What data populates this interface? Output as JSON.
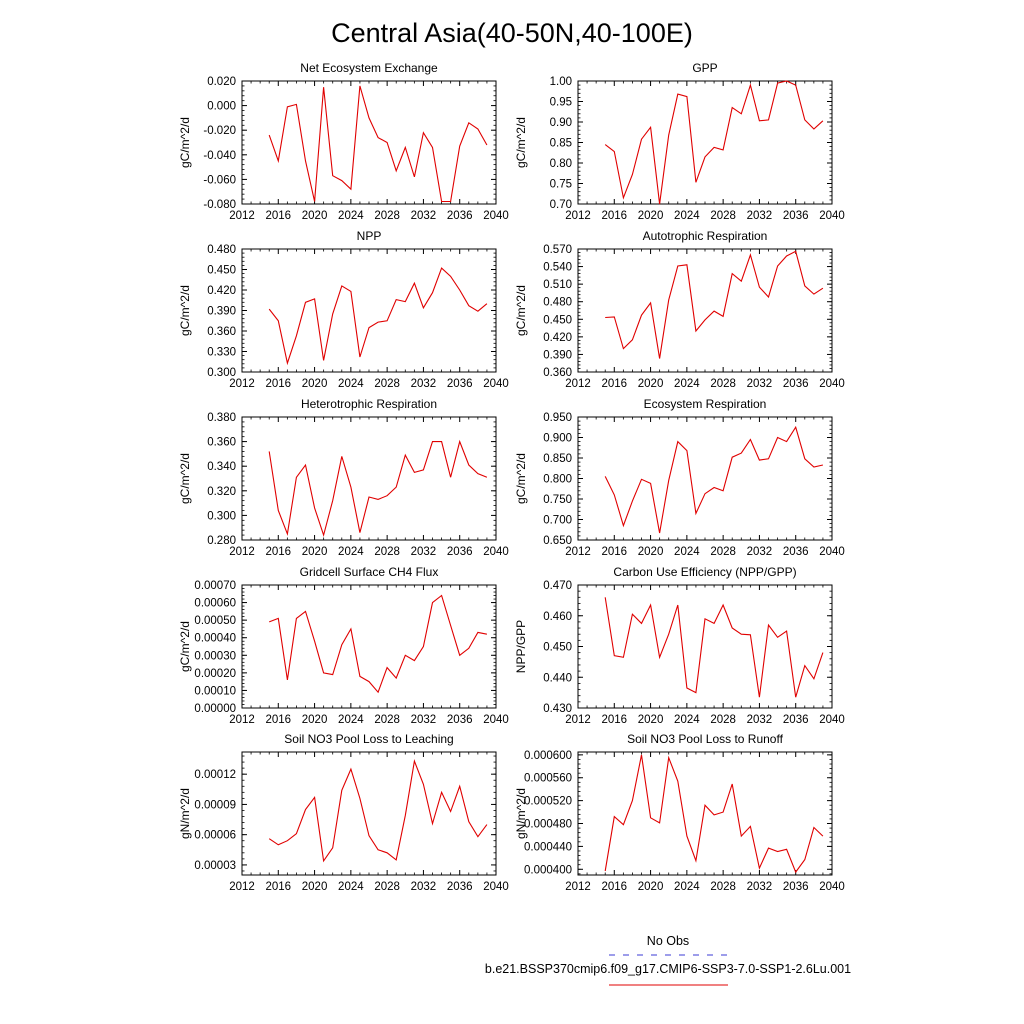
{
  "figure": {
    "title": "Central Asia(40-50N,40-100E)",
    "legend": {
      "items": [
        {
          "label": "No Obs",
          "color": "#3b3bd6",
          "dash": true
        },
        {
          "label": "b.e21.BSSP370cmip6.f09_g17.CMIP6-SSP3-7.0-SSP1-2.6Lu.001",
          "color": "#e00000",
          "dash": false
        }
      ]
    }
  },
  "chart_data": [
    {
      "type": "line",
      "title": "Net Ecosystem Exchange",
      "ylabel": "gC/m^2/d",
      "xlim": [
        2012,
        2040
      ],
      "xticks": [
        "2012",
        "2016",
        "2020",
        "2024",
        "2028",
        "2032",
        "2036",
        "2040"
      ],
      "ylim": [
        -0.08,
        0.02
      ],
      "yticks": [
        "-0.080",
        "-0.060",
        "-0.040",
        "-0.020",
        "0.000",
        "0.020"
      ],
      "line_color": "#e00000",
      "x": [
        2015,
        2016,
        2017,
        2018,
        2019,
        2020,
        2021,
        2022,
        2023,
        2024,
        2025,
        2026,
        2027,
        2028,
        2029,
        2030,
        2031,
        2032,
        2033,
        2034,
        2035,
        2036,
        2037,
        2038,
        2039
      ],
      "values": [
        -0.024,
        -0.045,
        -0.001,
        0.001,
        -0.045,
        -0.078,
        0.015,
        -0.057,
        -0.061,
        -0.068,
        0.016,
        -0.01,
        -0.026,
        -0.03,
        -0.053,
        -0.034,
        -0.058,
        -0.022,
        -0.034,
        -0.078,
        -0.078,
        -0.033,
        -0.014,
        -0.019,
        -0.032
      ]
    },
    {
      "type": "line",
      "title": "GPP",
      "ylabel": "gC/m^2/d",
      "xlim": [
        2012,
        2040
      ],
      "xticks": [
        "2012",
        "2016",
        "2020",
        "2024",
        "2028",
        "2032",
        "2036",
        "2040"
      ],
      "ylim": [
        0.7,
        1.0
      ],
      "yticks": [
        "0.70",
        "0.75",
        "0.80",
        "0.85",
        "0.90",
        "0.95",
        "1.00"
      ],
      "line_color": "#e00000",
      "x": [
        2015,
        2016,
        2017,
        2018,
        2019,
        2020,
        2021,
        2022,
        2023,
        2024,
        2025,
        2026,
        2027,
        2028,
        2029,
        2030,
        2031,
        2032,
        2033,
        2034,
        2035,
        2036,
        2037,
        2038,
        2039
      ],
      "values": [
        0.845,
        0.828,
        0.715,
        0.772,
        0.858,
        0.887,
        0.7,
        0.868,
        0.968,
        0.962,
        0.753,
        0.815,
        0.838,
        0.832,
        0.935,
        0.92,
        0.99,
        0.903,
        0.905,
        0.995,
        1.0,
        0.99,
        0.905,
        0.883,
        0.903
      ]
    },
    {
      "type": "line",
      "title": "NPP",
      "ylabel": "gC/m^2/d",
      "xlim": [
        2012,
        2040
      ],
      "xticks": [
        "2012",
        "2016",
        "2020",
        "2024",
        "2028",
        "2032",
        "2036",
        "2040"
      ],
      "ylim": [
        0.3,
        0.48
      ],
      "yticks": [
        "0.300",
        "0.330",
        "0.360",
        "0.390",
        "0.420",
        "0.450",
        "0.480"
      ],
      "line_color": "#e00000",
      "x": [
        2015,
        2016,
        2017,
        2018,
        2019,
        2020,
        2021,
        2022,
        2023,
        2024,
        2025,
        2026,
        2027,
        2028,
        2029,
        2030,
        2031,
        2032,
        2033,
        2034,
        2035,
        2036,
        2037,
        2038,
        2039
      ],
      "values": [
        0.392,
        0.375,
        0.313,
        0.353,
        0.402,
        0.407,
        0.317,
        0.385,
        0.426,
        0.418,
        0.322,
        0.365,
        0.373,
        0.375,
        0.406,
        0.403,
        0.43,
        0.394,
        0.416,
        0.452,
        0.44,
        0.42,
        0.397,
        0.389,
        0.4
      ]
    },
    {
      "type": "line",
      "title": "Autotrophic Respiration",
      "ylabel": "gC/m^2/d",
      "xlim": [
        2012,
        2040
      ],
      "xticks": [
        "2012",
        "2016",
        "2020",
        "2024",
        "2028",
        "2032",
        "2036",
        "2040"
      ],
      "ylim": [
        0.36,
        0.57
      ],
      "yticks": [
        "0.360",
        "0.390",
        "0.420",
        "0.450",
        "0.480",
        "0.510",
        "0.540",
        "0.570"
      ],
      "line_color": "#e00000",
      "x": [
        2015,
        2016,
        2017,
        2018,
        2019,
        2020,
        2021,
        2022,
        2023,
        2024,
        2025,
        2026,
        2027,
        2028,
        2029,
        2030,
        2031,
        2032,
        2033,
        2034,
        2035,
        2036,
        2037,
        2038,
        2039
      ],
      "values": [
        0.453,
        0.454,
        0.4,
        0.415,
        0.457,
        0.478,
        0.383,
        0.483,
        0.541,
        0.543,
        0.43,
        0.449,
        0.464,
        0.455,
        0.528,
        0.515,
        0.56,
        0.505,
        0.488,
        0.541,
        0.558,
        0.566,
        0.507,
        0.493,
        0.503
      ]
    },
    {
      "type": "line",
      "title": "Heterotrophic Respiration",
      "ylabel": "gC/m^2/d",
      "xlim": [
        2012,
        2040
      ],
      "xticks": [
        "2012",
        "2016",
        "2020",
        "2024",
        "2028",
        "2032",
        "2036",
        "2040"
      ],
      "ylim": [
        0.28,
        0.38
      ],
      "yticks": [
        "0.280",
        "0.300",
        "0.320",
        "0.340",
        "0.360",
        "0.380"
      ],
      "line_color": "#e00000",
      "x": [
        2015,
        2016,
        2017,
        2018,
        2019,
        2020,
        2021,
        2022,
        2023,
        2024,
        2025,
        2026,
        2027,
        2028,
        2029,
        2030,
        2031,
        2032,
        2033,
        2034,
        2035,
        2036,
        2037,
        2038,
        2039
      ],
      "values": [
        0.352,
        0.304,
        0.285,
        0.331,
        0.341,
        0.306,
        0.284,
        0.312,
        0.348,
        0.323,
        0.286,
        0.315,
        0.313,
        0.316,
        0.323,
        0.349,
        0.335,
        0.337,
        0.36,
        0.36,
        0.331,
        0.36,
        0.341,
        0.334,
        0.331
      ]
    },
    {
      "type": "line",
      "title": "Ecosystem Respiration",
      "ylabel": "gC/m^2/d",
      "xlim": [
        2012,
        2040
      ],
      "xticks": [
        "2012",
        "2016",
        "2020",
        "2024",
        "2028",
        "2032",
        "2036",
        "2040"
      ],
      "ylim": [
        0.65,
        0.95
      ],
      "yticks": [
        "0.650",
        "0.700",
        "0.750",
        "0.800",
        "0.850",
        "0.900",
        "0.950"
      ],
      "line_color": "#e00000",
      "x": [
        2015,
        2016,
        2017,
        2018,
        2019,
        2020,
        2021,
        2022,
        2023,
        2024,
        2025,
        2026,
        2027,
        2028,
        2029,
        2030,
        2031,
        2032,
        2033,
        2034,
        2035,
        2036,
        2037,
        2038,
        2039
      ],
      "values": [
        0.805,
        0.76,
        0.685,
        0.745,
        0.798,
        0.788,
        0.667,
        0.795,
        0.89,
        0.868,
        0.715,
        0.763,
        0.778,
        0.77,
        0.852,
        0.862,
        0.895,
        0.845,
        0.848,
        0.9,
        0.89,
        0.925,
        0.848,
        0.828,
        0.833
      ]
    },
    {
      "type": "line",
      "title": "Gridcell Surface CH4 Flux",
      "ylabel": "gC/m^2/d",
      "xlim": [
        2012,
        2040
      ],
      "xticks": [
        "2012",
        "2016",
        "2020",
        "2024",
        "2028",
        "2032",
        "2036",
        "2040"
      ],
      "ylim": [
        0.0,
        0.0007
      ],
      "yticks": [
        "0.00000",
        "0.00010",
        "0.00020",
        "0.00030",
        "0.00040",
        "0.00050",
        "0.00060",
        "0.00070"
      ],
      "line_color": "#e00000",
      "x": [
        2015,
        2016,
        2017,
        2018,
        2019,
        2020,
        2021,
        2022,
        2023,
        2024,
        2025,
        2026,
        2027,
        2028,
        2029,
        2030,
        2031,
        2032,
        2033,
        2034,
        2035,
        2036,
        2037,
        2038,
        2039
      ],
      "values": [
        0.00049,
        0.00051,
        0.00016,
        0.00051,
        0.00055,
        0.00038,
        0.0002,
        0.00019,
        0.00036,
        0.00045,
        0.00018,
        0.00015,
        9e-05,
        0.00023,
        0.00017,
        0.0003,
        0.00027,
        0.00035,
        0.0006,
        0.00064,
        0.00047,
        0.0003,
        0.00034,
        0.00043,
        0.00042
      ]
    },
    {
      "type": "line",
      "title": "Carbon Use Efficiency (NPP/GPP)",
      "ylabel": "NPP/GPP",
      "xlim": [
        2012,
        2040
      ],
      "xticks": [
        "2012",
        "2016",
        "2020",
        "2024",
        "2028",
        "2032",
        "2036",
        "2040"
      ],
      "ylim": [
        0.43,
        0.47
      ],
      "yticks": [
        "0.430",
        "0.440",
        "0.450",
        "0.460",
        "0.470"
      ],
      "line_color": "#e00000",
      "x": [
        2015,
        2016,
        2017,
        2018,
        2019,
        2020,
        2021,
        2022,
        2023,
        2024,
        2025,
        2026,
        2027,
        2028,
        2029,
        2030,
        2031,
        2032,
        2033,
        2034,
        2035,
        2036,
        2037,
        2038,
        2039
      ],
      "values": [
        0.466,
        0.447,
        0.4465,
        0.4605,
        0.4575,
        0.4635,
        0.4465,
        0.454,
        0.4635,
        0.4365,
        0.435,
        0.459,
        0.4575,
        0.4635,
        0.456,
        0.454,
        0.4538,
        0.4335,
        0.457,
        0.453,
        0.455,
        0.4335,
        0.4438,
        0.4395,
        0.448
      ]
    },
    {
      "type": "line",
      "title": "Soil NO3 Pool Loss to Leaching",
      "ylabel": "gN/m^2/d",
      "xlim": [
        2012,
        2040
      ],
      "xticks": [
        "2012",
        "2016",
        "2020",
        "2024",
        "2028",
        "2032",
        "2036",
        "2040"
      ],
      "ylim": [
        2e-05,
        0.000142
      ],
      "yticks": [
        "0.00003",
        "0.00006",
        "0.00009",
        "0.00012"
      ],
      "line_color": "#e00000",
      "x": [
        2015,
        2016,
        2017,
        2018,
        2019,
        2020,
        2021,
        2022,
        2023,
        2024,
        2025,
        2026,
        2027,
        2028,
        2029,
        2030,
        2031,
        2032,
        2033,
        2034,
        2035,
        2036,
        2037,
        2038,
        2039
      ],
      "values": [
        5.6e-05,
        5e-05,
        5.4e-05,
        6.1e-05,
        8.5e-05,
        9.7e-05,
        3.4e-05,
        4.7e-05,
        0.000104,
        0.000125,
        9.6e-05,
        5.9e-05,
        4.5e-05,
        4.2e-05,
        3.5e-05,
        7.9e-05,
        0.000133,
        0.00011,
        7.1e-05,
        0.000102,
        8.3e-05,
        0.000108,
        7.3e-05,
        5.8e-05,
        7e-05
      ]
    },
    {
      "type": "line",
      "title": "Soil NO3 Pool Loss to Runoff",
      "ylabel": "gN/m^2/d",
      "xlim": [
        2012,
        2040
      ],
      "xticks": [
        "2012",
        "2016",
        "2020",
        "2024",
        "2028",
        "2032",
        "2036",
        "2040"
      ],
      "ylim": [
        0.00039,
        0.000605
      ],
      "yticks": [
        "0.000400",
        "0.000440",
        "0.000480",
        "0.000520",
        "0.000560",
        "0.000600"
      ],
      "line_color": "#e00000",
      "x": [
        2015,
        2016,
        2017,
        2018,
        2019,
        2020,
        2021,
        2022,
        2023,
        2024,
        2025,
        2026,
        2027,
        2028,
        2029,
        2030,
        2031,
        2032,
        2033,
        2034,
        2035,
        2036,
        2037,
        2038,
        2039
      ],
      "values": [
        0.000397,
        0.000492,
        0.000478,
        0.00052,
        0.0006,
        0.00049,
        0.000481,
        0.000595,
        0.000554,
        0.000458,
        0.000415,
        0.000512,
        0.000495,
        0.0005,
        0.000549,
        0.000458,
        0.000475,
        0.000402,
        0.000437,
        0.000431,
        0.000435,
        0.000395,
        0.000417,
        0.000473,
        0.000458
      ]
    }
  ]
}
